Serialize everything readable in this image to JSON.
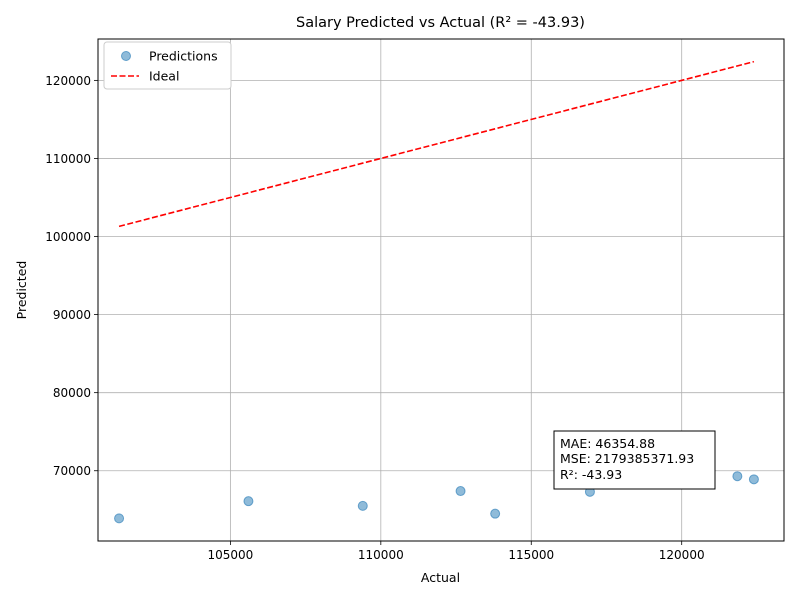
{
  "chart_data": {
    "type": "scatter",
    "title": "Salary Predicted vs Actual (R² = -43.93)",
    "xlabel": "Actual",
    "ylabel": "Predicted",
    "xlim": [
      100600,
      123400
    ],
    "ylim": [
      61000,
      125300
    ],
    "xticks": [
      105000,
      110000,
      115000,
      120000
    ],
    "xtick_labels": [
      "105000",
      "110000",
      "115000",
      "120000"
    ],
    "yticks": [
      70000,
      80000,
      90000,
      100000,
      110000,
      120000
    ],
    "ytick_labels": [
      "70000",
      "80000",
      "90000",
      "100000",
      "110000",
      "120000"
    ],
    "grid": true,
    "legend_position": "top-left",
    "series": [
      {
        "name": "Predictions",
        "kind": "scatter",
        "color": "#1f77b4",
        "x": [
          101300,
          105600,
          109400,
          112650,
          113800,
          116950,
          121850,
          122400
        ],
        "y": [
          63900,
          66100,
          65500,
          67400,
          64500,
          67300,
          69300,
          68900
        ]
      },
      {
        "name": "Ideal",
        "kind": "line",
        "style": "dashed",
        "color": "#ff0000",
        "x": [
          101300,
          122400
        ],
        "y": [
          101300,
          122400
        ]
      }
    ],
    "annotation": {
      "lines": [
        "MAE: 46354.88",
        "MSE: 2179385371.93",
        "R²: -43.93"
      ]
    }
  }
}
